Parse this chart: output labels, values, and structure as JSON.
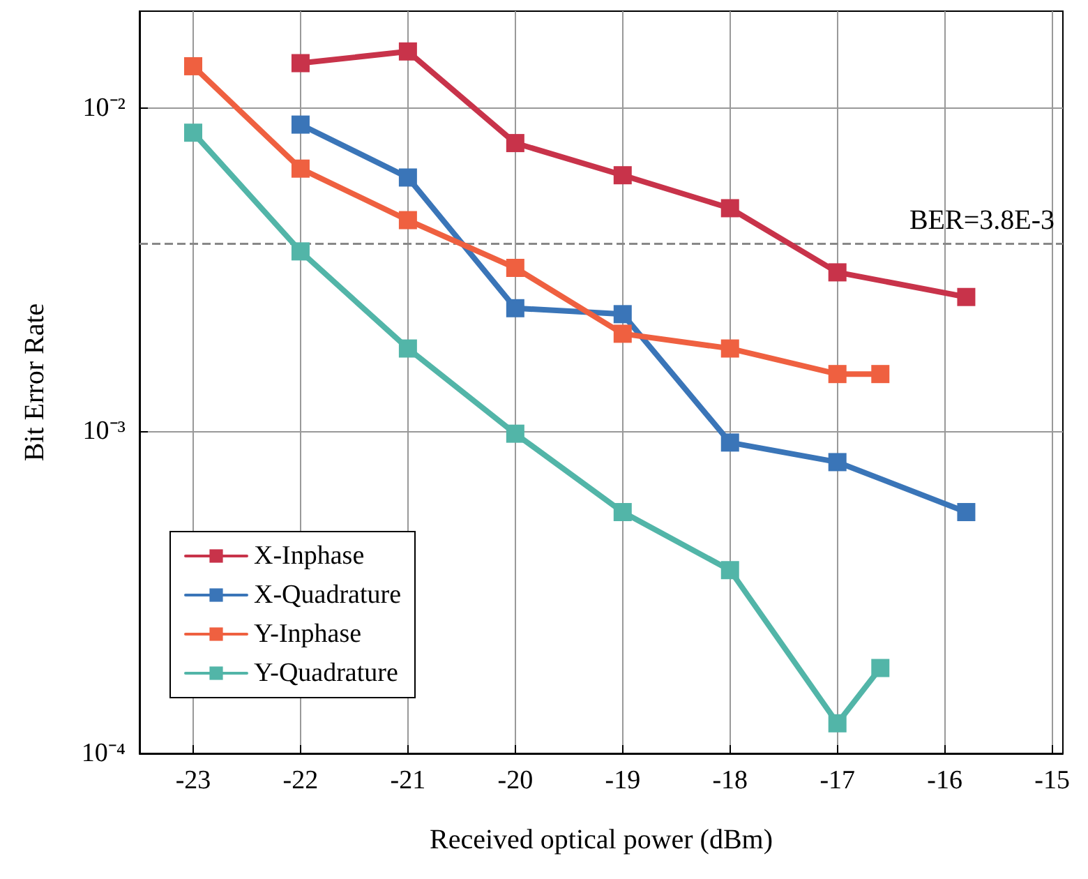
{
  "chart_data": {
    "type": "line",
    "xlabel": "Received optical power (dBm)",
    "ylabel": "Bit Error Rate",
    "log": "y",
    "grid": true,
    "legend": "bottom left",
    "marker": "square",
    "line_style": "solid",
    "xlim": [
      -23.5,
      -14.9
    ],
    "xticks": [
      -23,
      -22,
      -21,
      -20,
      -19,
      -18,
      -17,
      -16,
      -15
    ],
    "ylim": [
      0.0001,
      0.02
    ],
    "yticks": [
      {
        "value": 0.0001,
        "label": "10⁻⁴"
      },
      {
        "value": 0.001,
        "label": "10⁻³"
      },
      {
        "value": 0.01,
        "label": "10⁻²"
      }
    ],
    "ref_lines": [
      {
        "axis": "y",
        "value": 0.0038,
        "label": "BER=3.8E-3",
        "color": "#888888",
        "line_style": "dashed"
      }
    ],
    "series": [
      {
        "name": "X-Inphase",
        "color": "#c8334a",
        "x": [
          -22,
          -21,
          -20,
          -19,
          -18,
          -17,
          -15.8
        ],
        "values": [
          0.0138,
          0.015,
          0.0078,
          0.0062,
          0.0049,
          0.0031,
          0.0026
        ]
      },
      {
        "name": "X-Quadrature",
        "color": "#3a75b8",
        "x": [
          -22,
          -21,
          -20,
          -19,
          -18,
          -17,
          -15.8
        ],
        "values": [
          0.0089,
          0.0061,
          0.0024,
          0.0023,
          0.00092,
          0.0008,
          0.00056
        ]
      },
      {
        "name": "Y-Inphase",
        "color": "#ef6040",
        "x": [
          -23,
          -22,
          -21,
          -20,
          -19,
          -18,
          -17,
          -16.6
        ],
        "values": [
          0.0135,
          0.0065,
          0.0045,
          0.0032,
          0.002,
          0.0018,
          0.0015,
          0.0015
        ]
      },
      {
        "name": "Y-Quadrature",
        "color": "#52b5a8",
        "x": [
          -23,
          -22,
          -21,
          -20,
          -19,
          -18,
          -17,
          -16.6
        ],
        "values": [
          0.0084,
          0.0036,
          0.0018,
          0.00098,
          0.00056,
          0.00037,
          0.000124,
          0.000184
        ]
      }
    ]
  }
}
